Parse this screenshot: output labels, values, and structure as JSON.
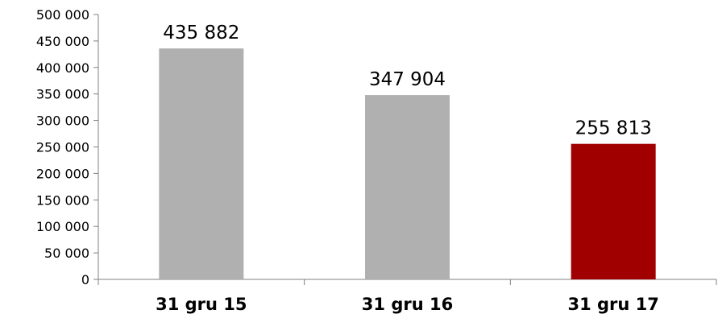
{
  "chart_data": {
    "type": "bar",
    "categories": [
      "31 gru 15",
      "31 gru 16",
      "31 gru 17"
    ],
    "values": [
      435882,
      347904,
      255813
    ],
    "data_labels": [
      "435 882",
      "347 904",
      "255 813"
    ],
    "bar_colors": [
      "#b0b0b0",
      "#b0b0b0",
      "#a00000"
    ],
    "ylim": [
      0,
      500000
    ],
    "y_ticks": [
      0,
      50000,
      100000,
      150000,
      200000,
      250000,
      300000,
      350000,
      400000,
      450000,
      500000
    ],
    "y_tick_labels": [
      "0",
      "50 000",
      "100 000",
      "150 000",
      "200 000",
      "250 000",
      "300 000",
      "350 000",
      "400 000",
      "450 000",
      "500 000"
    ],
    "grid": false,
    "legend": "none"
  }
}
